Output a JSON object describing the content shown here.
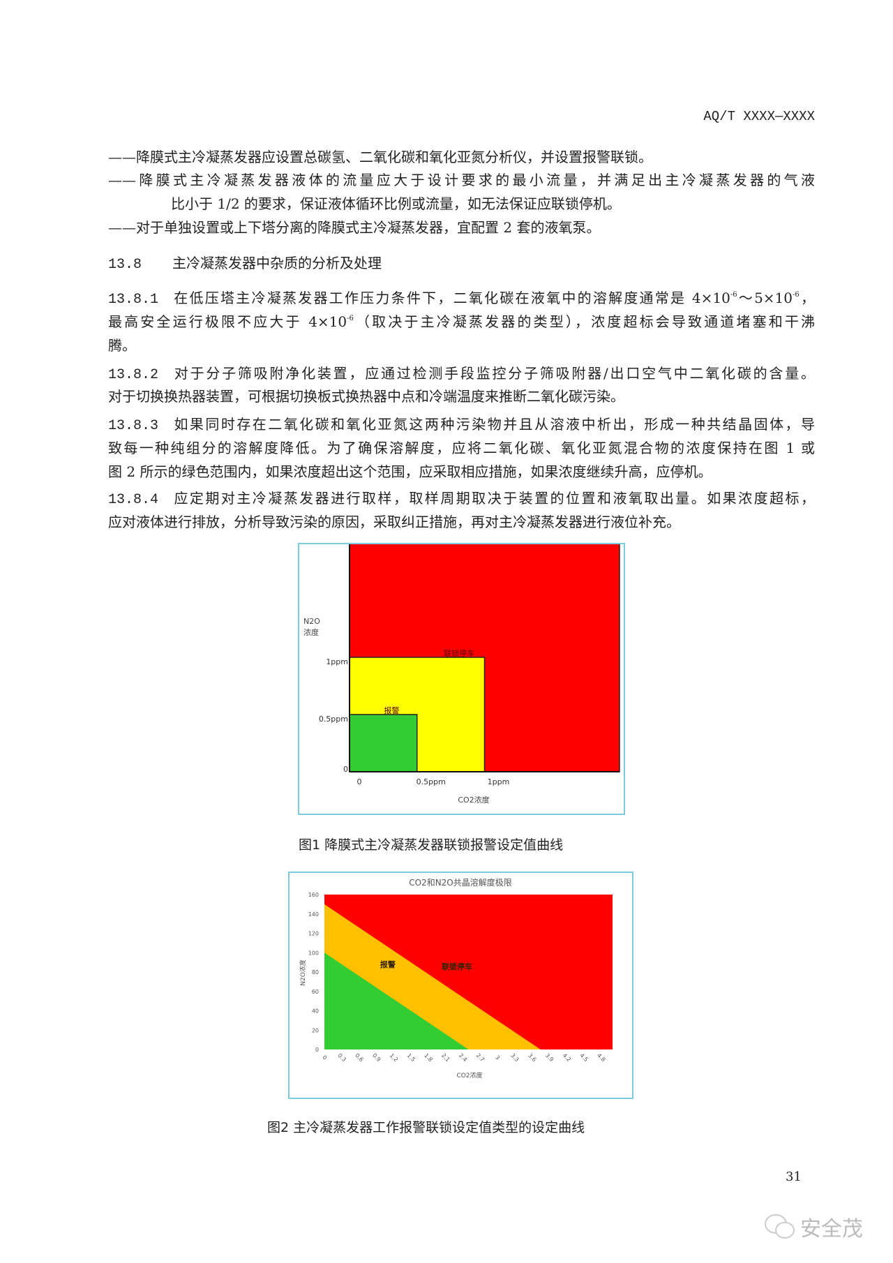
{
  "header": {
    "doc_code": "AQ/T XXXX—XXXX"
  },
  "bullets": [
    {
      "lines": [
        "——降膜式主冷凝蒸发器应设置总碳氢、二氧化碳和氧化亚氮分析仪，并设置报警联锁。"
      ]
    },
    {
      "lines": [
        "——降膜式主冷凝蒸发器液体的流量应大于设计要求的最小流量，并满足出主冷凝蒸发器的气液",
        "比小于 1/2 的要求，保证液体循环比例或流量，如无法保证应联锁停机。"
      ]
    },
    {
      "lines": [
        "——对于单独设置或上下塔分离的降膜式主冷凝蒸发器，宜配置 2 套的液氧泵。"
      ]
    }
  ],
  "section": {
    "number": "13.8",
    "title": "主冷凝蒸发器中杂质的分析及处理"
  },
  "clauses": [
    {
      "number": "13.8.1",
      "l1a": "在低压塔主冷凝蒸发器工作压力条件下，二氧化碳在液氧中的溶解度通常是 4×10",
      "l1b": "-6",
      "l1c": "～5×10",
      "l1d": "-6",
      "l1e": "，",
      "l2a": "最高安全运行极限不应大于  4×10",
      "l2b": "-6",
      "l2c": "（取决于主冷凝蒸发器的类型），浓度超标会导致通道堵塞和干沸",
      "l3": "腾。"
    },
    {
      "number": "13.8.2",
      "lines": [
        "对于分子筛吸附净化装置，应通过检测手段监控分子筛吸附器/出口空气中二氧化碳的含量。",
        "对于切换换热器装置，可根据切换板式换热器中点和冷端温度来推断二氧化碳污染。"
      ]
    },
    {
      "number": "13.8.3",
      "lines": [
        "如果同时存在二氧化碳和氧化亚氮这两种污染物并且从溶液中析出，形成一种共结晶固体，导",
        "致每一种纯组分的溶解度降低。为了确保溶解度，应将二氧化碳、氧化亚氮混合物的浓度保持在图 1 或",
        "图 2 所示的绿色范围内，如果浓度超出这个范围，应采取相应措施，如果浓度继续升高，应停机。"
      ]
    },
    {
      "number": "13.8.4",
      "lines": [
        "应定期对主冷凝蒸发器进行取样，取样周期取决于装置的位置和液氧取出量。如果浓度超标，",
        "应对液体进行排放，分析导致污染的原因，采取纠正措施，再对主冷凝蒸发器进行液位补充。"
      ]
    }
  ],
  "figures": [
    {
      "caption": "图1    降膜式主冷凝蒸发器联锁报警设定值曲线"
    },
    {
      "caption": "图2    主冷凝蒸发器工作报警联锁设定值类型的设定曲线"
    }
  ],
  "page_number": "31",
  "watermark": "安全茂",
  "chart_data": [
    {
      "type": "area",
      "title": "",
      "xlabel": "CO2浓度",
      "ylabel_line1": "N2O",
      "ylabel_line2": "浓度",
      "xlim": [
        0,
        2
      ],
      "ylim": [
        0,
        2
      ],
      "x_ticks": [
        {
          "v": 0,
          "label": "0"
        },
        {
          "v": 0.5,
          "label": "0.5ppm"
        },
        {
          "v": 1,
          "label": "1ppm"
        }
      ],
      "y_ticks": [
        {
          "v": 0,
          "label": "0"
        },
        {
          "v": 0.5,
          "label": "0.5ppm"
        },
        {
          "v": 1,
          "label": "1ppm"
        }
      ],
      "regions": [
        {
          "name": "联锁停车",
          "x_max": 2,
          "y_max": 2,
          "color": "#ff0000"
        },
        {
          "name": "",
          "x_max": 1,
          "y_max": 1,
          "color": "#ffff00"
        },
        {
          "name": "",
          "x_max": 0.5,
          "y_max": 0.5,
          "color": "#33cc33"
        }
      ],
      "labels": [
        {
          "text": "联锁停车",
          "x": 0.75,
          "y": 1
        },
        {
          "text": "报警",
          "x": 0.25,
          "y": 0.5
        }
      ]
    },
    {
      "type": "area",
      "title": "CO2和N2O共晶溶解度极限",
      "xlabel": "CO2浓度",
      "ylabel": "N2O浓度",
      "xlim": [
        0,
        5
      ],
      "ylim": [
        0,
        160
      ],
      "x_ticks": [
        "0",
        "0.3",
        "0.6",
        "0.9",
        "1.2",
        "1.5",
        "1.8",
        "2.1",
        "2.4",
        "2.7",
        "3",
        "3.3",
        "3.6",
        "3.9",
        "4.2",
        "4.5",
        "4.8"
      ],
      "y_ticks": [
        0,
        20,
        40,
        60,
        80,
        100,
        120,
        140,
        160
      ],
      "grid": false,
      "regions": [
        {
          "name": "联锁停车",
          "color": "#ff0000",
          "boundary": "above alarm line"
        },
        {
          "name": "报警",
          "color": "#ffc000",
          "line": [
            [
              0,
              150
            ],
            [
              3.75,
              0
            ]
          ]
        },
        {
          "name": "",
          "color": "#33cc33",
          "line": [
            [
              0,
              100
            ],
            [
              2.5,
              0
            ]
          ]
        }
      ],
      "labels": [
        {
          "text": "报警",
          "x": 1.1,
          "y": 85
        },
        {
          "text": "联锁停车",
          "x": 2.3,
          "y": 83
        }
      ]
    }
  ]
}
